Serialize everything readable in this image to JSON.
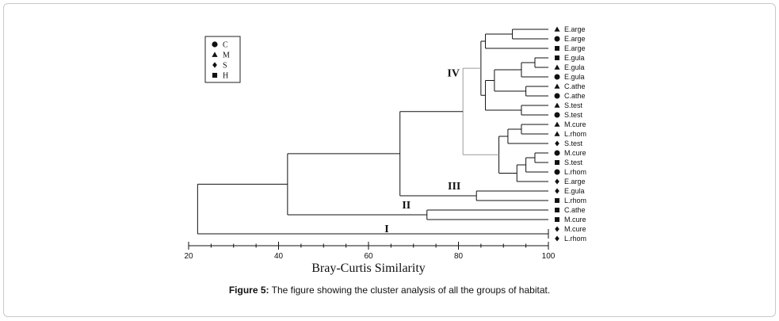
{
  "chart_data": {
    "type": "dendrogram",
    "xlabel": "Bray-Curtis Similarity",
    "xlim": [
      20,
      100
    ],
    "xticks": [
      20,
      40,
      60,
      80,
      100
    ],
    "legend": [
      {
        "marker": "circle",
        "label": "C"
      },
      {
        "marker": "triangle",
        "label": "M"
      },
      {
        "marker": "diamond",
        "label": "S"
      },
      {
        "marker": "square",
        "label": "H"
      }
    ],
    "leaves": [
      {
        "marker": "triangle",
        "label": "E.arge"
      },
      {
        "marker": "circle",
        "label": "E.arge"
      },
      {
        "marker": "square",
        "label": "E.arge"
      },
      {
        "marker": "square",
        "label": "E.gula"
      },
      {
        "marker": "triangle",
        "label": "E.gula"
      },
      {
        "marker": "circle",
        "label": "E.gula"
      },
      {
        "marker": "triangle",
        "label": "C.athe"
      },
      {
        "marker": "circle",
        "label": "C.athe"
      },
      {
        "marker": "triangle",
        "label": "S.test"
      },
      {
        "marker": "circle",
        "label": "S.test"
      },
      {
        "marker": "triangle",
        "label": "M.cure"
      },
      {
        "marker": "triangle",
        "label": "L.rhom"
      },
      {
        "marker": "diamond",
        "label": "S.test"
      },
      {
        "marker": "circle",
        "label": "M.cure"
      },
      {
        "marker": "square",
        "label": "S.test"
      },
      {
        "marker": "circle",
        "label": "L.rhom"
      },
      {
        "marker": "diamond",
        "label": "E.arge"
      },
      {
        "marker": "diamond",
        "label": "E.gula"
      },
      {
        "marker": "square",
        "label": "L.rhom"
      },
      {
        "marker": "square",
        "label": "C.athe"
      },
      {
        "marker": "square",
        "label": "M.cure"
      },
      {
        "marker": "diamond",
        "label": "M.cure"
      },
      {
        "marker": "diamond",
        "label": "L.rhom"
      }
    ],
    "merges": [
      {
        "id": "n1",
        "children": [
          "L0",
          "L1"
        ],
        "similarity": 92
      },
      {
        "id": "n2",
        "children": [
          "n1",
          "L2"
        ],
        "similarity": 86
      },
      {
        "id": "n3",
        "children": [
          "L3",
          "L4"
        ],
        "similarity": 97
      },
      {
        "id": "n4",
        "children": [
          "n3",
          "L5"
        ],
        "similarity": 94
      },
      {
        "id": "n5",
        "children": [
          "L6",
          "L7"
        ],
        "similarity": 95
      },
      {
        "id": "n6",
        "children": [
          "n4",
          "n5"
        ],
        "similarity": 88
      },
      {
        "id": "n7",
        "children": [
          "L8",
          "L9"
        ],
        "similarity": 94
      },
      {
        "id": "n8",
        "children": [
          "n6",
          "n7"
        ],
        "similarity": 86
      },
      {
        "id": "n9",
        "children": [
          "n2",
          "n8"
        ],
        "similarity": 85
      },
      {
        "id": "n10",
        "children": [
          "L10",
          "L11"
        ],
        "similarity": 94
      },
      {
        "id": "n11",
        "children": [
          "n10",
          "L12"
        ],
        "similarity": 91
      },
      {
        "id": "n12",
        "children": [
          "L13",
          "L14"
        ],
        "similarity": 97
      },
      {
        "id": "n13",
        "children": [
          "n12",
          "L15"
        ],
        "similarity": 95
      },
      {
        "id": "n14",
        "children": [
          "n13",
          "L16"
        ],
        "similarity": 93
      },
      {
        "id": "n15",
        "children": [
          "n11",
          "n14"
        ],
        "similarity": 89
      },
      {
        "id": "n16",
        "children": [
          "n9",
          "n15"
        ],
        "similarity": 81,
        "color": "#9a9a9a"
      },
      {
        "id": "n17",
        "children": [
          "L17",
          "L18"
        ],
        "similarity": 84
      },
      {
        "id": "n18",
        "children": [
          "n16",
          "n17"
        ],
        "similarity": 67
      },
      {
        "id": "n19",
        "children": [
          "L19",
          "L20"
        ],
        "similarity": 73
      },
      {
        "id": "n20",
        "children": [
          "n18",
          "n19"
        ],
        "similarity": 42
      },
      {
        "id": "n21",
        "children": [
          "L21",
          "L22"
        ],
        "similarity": 100
      },
      {
        "id": "n22",
        "children": [
          "n20",
          "n21"
        ],
        "similarity": 22
      }
    ],
    "group_labels": [
      {
        "label": "IV",
        "node": "n16"
      },
      {
        "label": "III",
        "node": "n17"
      },
      {
        "label": "II",
        "node": "n19"
      },
      {
        "label": "I",
        "node": "n21"
      }
    ]
  },
  "caption": {
    "label": "Figure 5:",
    "text": "The figure showing the cluster analysis of all the groups of habitat."
  }
}
